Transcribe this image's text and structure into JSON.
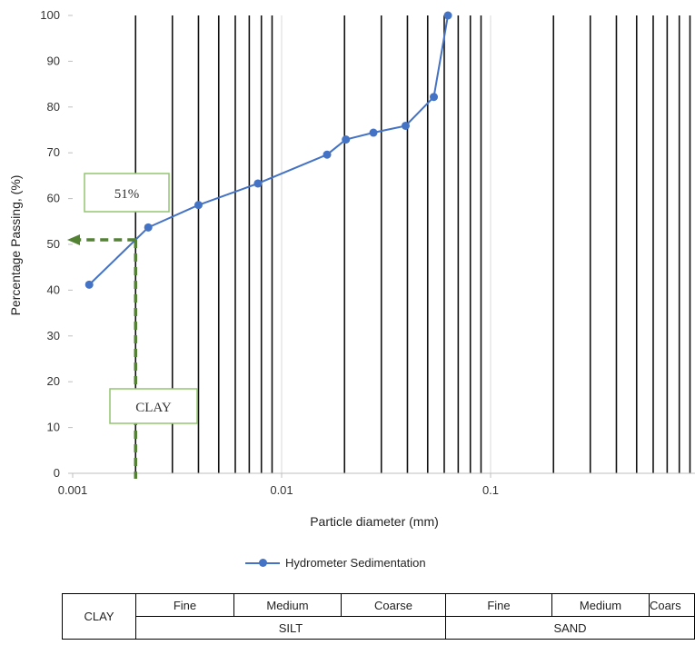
{
  "chart_data": {
    "type": "scatter",
    "xscale": "log",
    "xlim": [
      0.001,
      1
    ],
    "ylim": [
      0,
      100
    ],
    "xlabel": "Particle diameter (mm)",
    "ylabel": "Percentage Passing, (%)",
    "x_ticks": [
      "0.001",
      "0.01",
      "0.1"
    ],
    "y_ticks": [
      "0",
      "10",
      "20",
      "30",
      "40",
      "50",
      "60",
      "70",
      "80",
      "90",
      "100"
    ],
    "vertical_gridlines": [
      0.002,
      0.003,
      0.004,
      0.005,
      0.006,
      0.007,
      0.008,
      0.009,
      0.02,
      0.03,
      0.04,
      0.05,
      0.06,
      0.07,
      0.08,
      0.09,
      0.2,
      0.3,
      0.4,
      0.5,
      0.6,
      0.7,
      0.8,
      0.9
    ],
    "series": [
      {
        "name": "Hydrometer Sedimentation",
        "color": "#4472c4",
        "x": [
          0.0012,
          0.0023,
          0.004,
          0.0077,
          0.0165,
          0.0203,
          0.0275,
          0.0392,
          0.0535,
          0.0625
        ],
        "y": [
          41.2,
          53.7,
          58.6,
          63.3,
          69.6,
          72.9,
          74.4,
          75.9,
          82.2,
          100
        ]
      }
    ],
    "annotations": {
      "value_box": "51%",
      "value_box_color": "#93c572",
      "clay_box": "CLAY",
      "marker_x": 0.002,
      "marker_y": 51,
      "marker_color": "#548235"
    },
    "legend": {
      "position": "bottom",
      "label": "Hydrometer Sedimentation"
    }
  },
  "classification_table": {
    "clay": "CLAY",
    "silt_label": "SILT",
    "sand_label": "SAND",
    "silt_subs": [
      "Fine",
      "Medium",
      "Coarse"
    ],
    "sand_subs": [
      "Fine",
      "Medium",
      "Coars"
    ]
  }
}
